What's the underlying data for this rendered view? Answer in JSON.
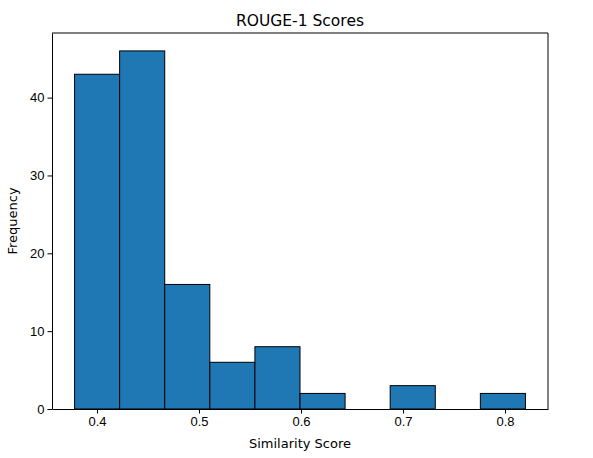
{
  "chart_data": {
    "type": "histogram",
    "title": "ROUGE-1 Scores",
    "x_label": "Similarity Score",
    "y_label": "Frequency",
    "bins": [
      0.378,
      0.4222,
      0.4664,
      0.5106,
      0.5548,
      0.599,
      0.6432,
      0.6874,
      0.7316,
      0.7758,
      0.82
    ],
    "values": [
      43,
      46,
      16,
      6,
      8,
      2,
      0,
      3,
      0,
      2
    ],
    "color": "#1f77b4",
    "xlim": [
      0.3559,
      0.8421
    ],
    "ylim": [
      0,
      48.3
    ],
    "xticks": [
      0.4,
      0.5,
      0.6,
      0.7,
      0.8
    ],
    "yticks": [
      0,
      10,
      20,
      30,
      40
    ]
  }
}
